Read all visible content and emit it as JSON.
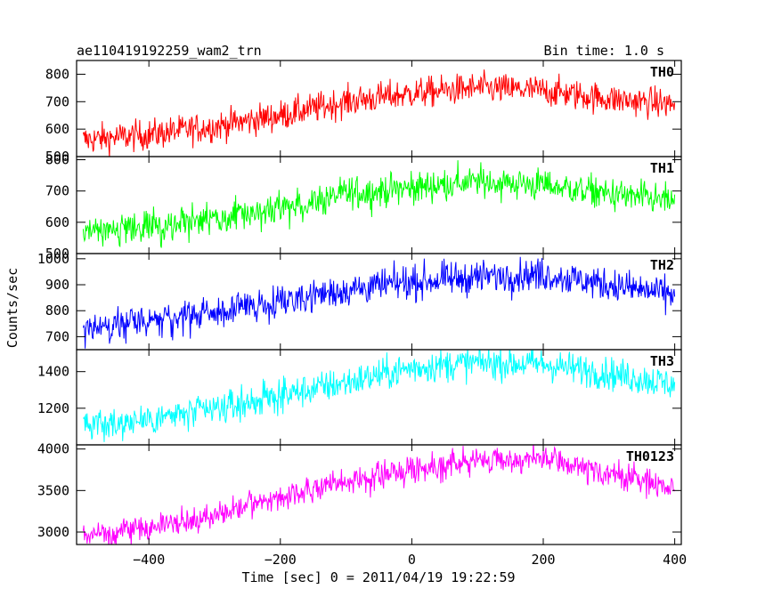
{
  "header": {
    "title": "ae110419192259_wam2_trn",
    "bin_time": "Bin time: 1.0 s"
  },
  "ylabel": "Counts/sec",
  "xlabel": "Time [sec] 0 = 2011/04/19 19:22:59",
  "chart_data": [
    {
      "type": "line",
      "name": "TH0",
      "color": "#ff0000",
      "xlim": [
        -510,
        410
      ],
      "ylim": [
        500,
        850
      ],
      "yticks": [
        {
          "v": 500,
          "t": "500"
        },
        {
          "v": 600,
          "t": "600"
        },
        {
          "v": 700,
          "t": "700"
        },
        {
          "v": 800,
          "t": "800"
        }
      ],
      "x": [
        -500,
        -400,
        -300,
        -200,
        -100,
        0,
        100,
        200,
        300,
        400
      ],
      "y": [
        560,
        580,
        610,
        650,
        700,
        730,
        750,
        740,
        710,
        690
      ],
      "noise": 28
    },
    {
      "type": "line",
      "name": "TH1",
      "color": "#00ff00",
      "xlim": [
        -510,
        410
      ],
      "ylim": [
        500,
        810
      ],
      "yticks": [
        {
          "v": 500,
          "t": "500"
        },
        {
          "v": 600,
          "t": "600"
        },
        {
          "v": 700,
          "t": "700"
        },
        {
          "v": 800,
          "t": "800"
        }
      ],
      "x": [
        -500,
        -400,
        -300,
        -200,
        -100,
        0,
        100,
        200,
        300,
        400
      ],
      "y": [
        560,
        585,
        610,
        640,
        690,
        710,
        730,
        720,
        690,
        665
      ],
      "noise": 26
    },
    {
      "type": "line",
      "name": "TH2",
      "color": "#0000ff",
      "xlim": [
        -510,
        410
      ],
      "ylim": [
        650,
        1020
      ],
      "yticks": [
        {
          "v": 700,
          "t": "700"
        },
        {
          "v": 800,
          "t": "800"
        },
        {
          "v": 900,
          "t": "900"
        },
        {
          "v": 1000,
          "t": "1000"
        }
      ],
      "x": [
        -500,
        -400,
        -300,
        -200,
        -100,
        0,
        100,
        200,
        300,
        400
      ],
      "y": [
        730,
        760,
        790,
        840,
        880,
        910,
        930,
        940,
        900,
        860
      ],
      "noise": 32
    },
    {
      "type": "line",
      "name": "TH3",
      "color": "#00ffff",
      "xlim": [
        -510,
        410
      ],
      "ylim": [
        1000,
        1520
      ],
      "yticks": [
        {
          "v": 1200,
          "t": "1200"
        },
        {
          "v": 1400,
          "t": "1400"
        }
      ],
      "x": [
        -500,
        -400,
        -300,
        -200,
        -100,
        0,
        100,
        200,
        300,
        400
      ],
      "y": [
        1100,
        1140,
        1190,
        1270,
        1340,
        1420,
        1450,
        1440,
        1390,
        1330
      ],
      "noise": 45
    },
    {
      "type": "line",
      "name": "TH0123",
      "color": "#ff00ff",
      "xlim": [
        -510,
        410
      ],
      "ylim": [
        2850,
        4050
      ],
      "yticks": [
        {
          "v": 3000,
          "t": "3000"
        },
        {
          "v": 3500,
          "t": "3500"
        },
        {
          "v": 4000,
          "t": "4000"
        }
      ],
      "x": [
        -500,
        -400,
        -300,
        -200,
        -100,
        0,
        100,
        200,
        300,
        400
      ],
      "y": [
        2960,
        3050,
        3200,
        3420,
        3600,
        3760,
        3860,
        3880,
        3700,
        3540
      ],
      "noise": 80
    }
  ],
  "xticks": [
    {
      "v": -400,
      "t": "−400"
    },
    {
      "v": -200,
      "t": "−200"
    },
    {
      "v": 0,
      "t": "0"
    },
    {
      "v": 200,
      "t": "200"
    },
    {
      "v": 400,
      "t": "400"
    }
  ]
}
